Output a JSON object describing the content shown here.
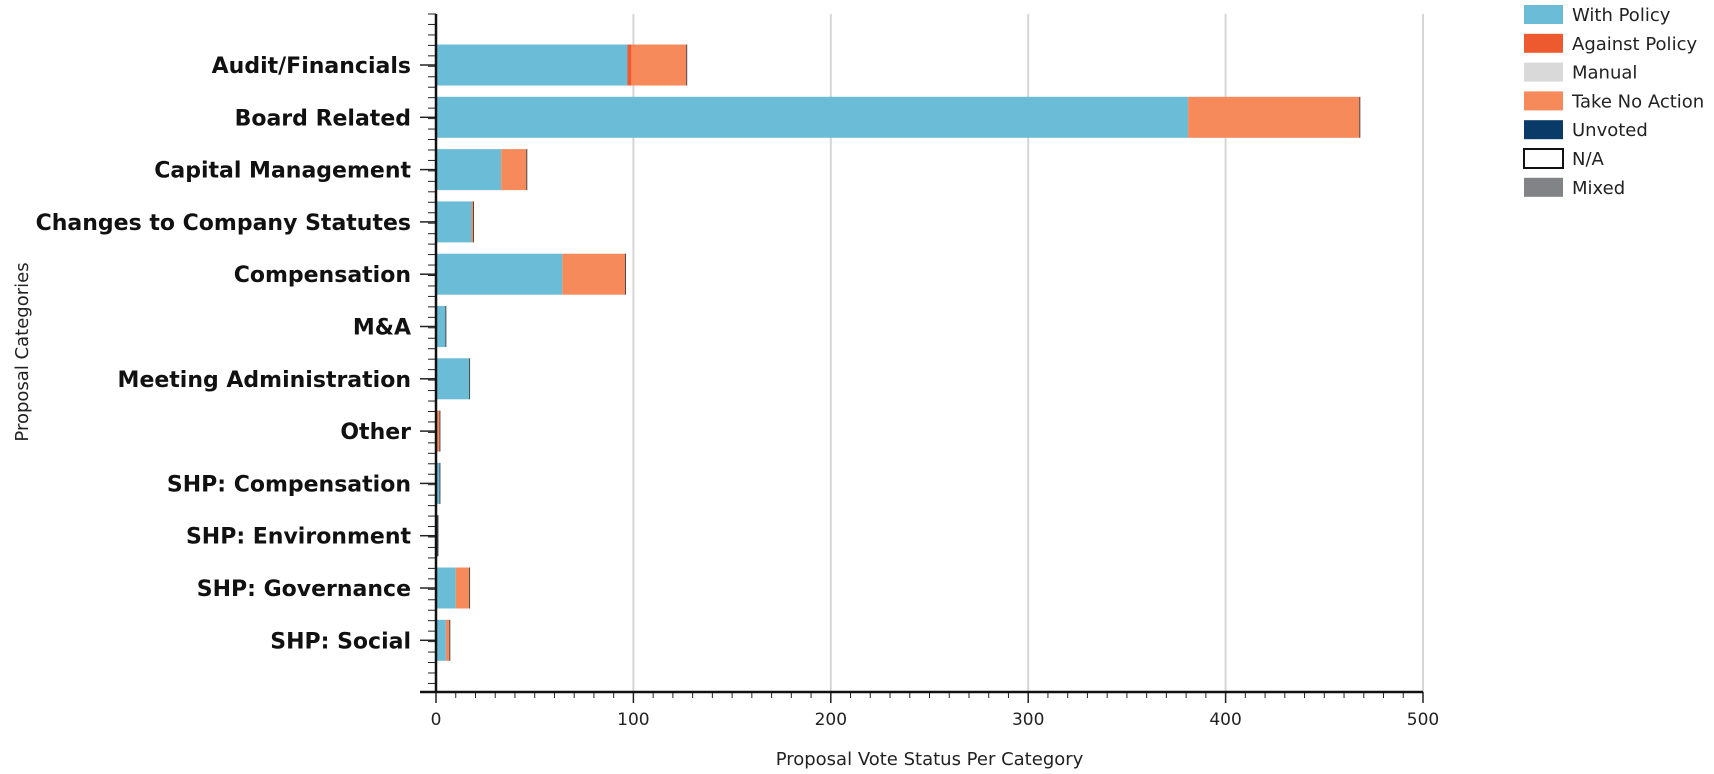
{
  "chart_data": {
    "type": "bar",
    "orientation": "horizontal",
    "stacked": true,
    "title": "",
    "xlabel": "Proposal Vote Status Per Category",
    "ylabel": "Proposal Categories",
    "xlim": [
      0,
      500
    ],
    "xticks": [
      0,
      100,
      200,
      300,
      400,
      500
    ],
    "grid": "vertical",
    "legend_position": "top-right",
    "categories": [
      "Audit/Financials",
      "Board Related",
      "Capital Management",
      "Changes to Company Statutes",
      "Compensation",
      "M&A",
      "Meeting Administration",
      "Other",
      "SHP: Compensation",
      "SHP: Environment",
      "SHP: Governance",
      "SHP: Social"
    ],
    "series": [
      {
        "name": "With Policy",
        "color": "#6bbcd6",
        "values": [
          97,
          381,
          33,
          18,
          64,
          5,
          17,
          0,
          2,
          0,
          10,
          5
        ]
      },
      {
        "name": "Against Policy",
        "color": "#ee5a2f",
        "values": [
          2,
          0,
          0,
          0,
          0,
          0,
          0,
          0,
          0,
          0,
          0,
          0
        ]
      },
      {
        "name": "Manual",
        "color": "#d9d9d9",
        "values": [
          0,
          0,
          0,
          0,
          0,
          0,
          0,
          0,
          0,
          0,
          0,
          0
        ]
      },
      {
        "name": "Take No Action",
        "color": "#f68a5b",
        "values": [
          28,
          87,
          13,
          1,
          32,
          0,
          0,
          2,
          0,
          0,
          7,
          2
        ]
      },
      {
        "name": "Unvoted",
        "color": "#0a3a68",
        "values": [
          0,
          0,
          0,
          0,
          0,
          0,
          0,
          0,
          0,
          1,
          0,
          0
        ]
      },
      {
        "name": "N/A",
        "color": "#ffffff",
        "outline": "#111111",
        "values": [
          0,
          0,
          0,
          0,
          0,
          0,
          0,
          0,
          0,
          0,
          0,
          0
        ]
      },
      {
        "name": "Mixed",
        "color": "#828387",
        "values": [
          0,
          0,
          0,
          0,
          0,
          0,
          0,
          0,
          0,
          0,
          0,
          0
        ]
      }
    ]
  }
}
